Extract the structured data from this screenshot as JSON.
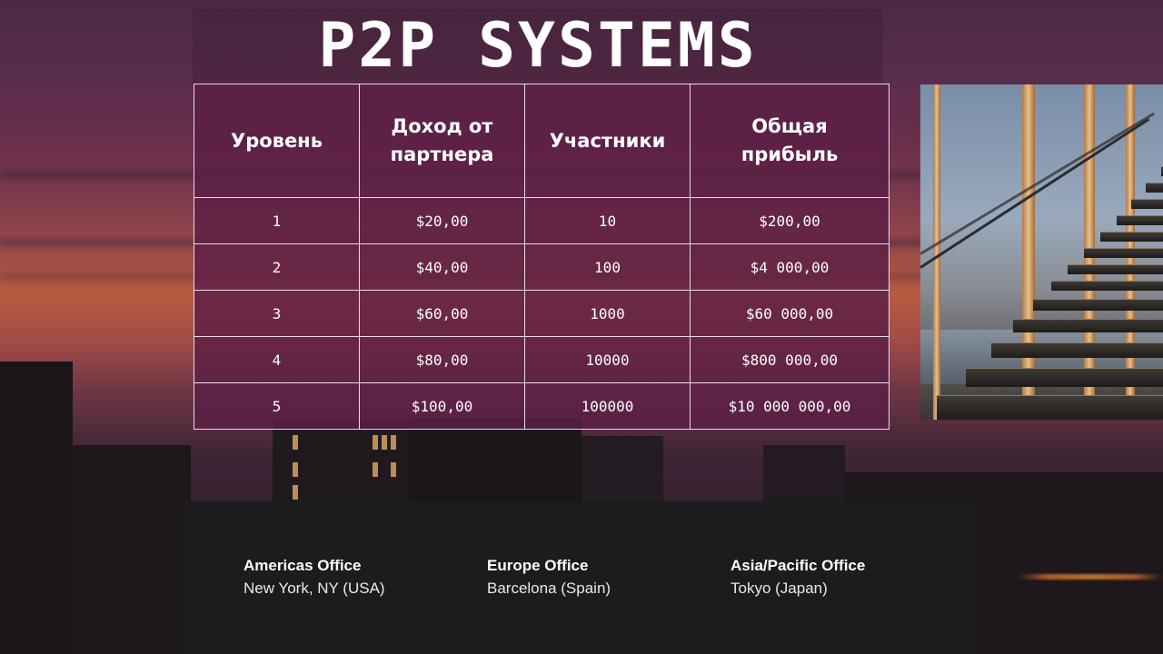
{
  "title": "P2P SYSTEMS",
  "table": {
    "headers": [
      "Уровень",
      "Доход от партнера",
      "Участники",
      "Общая прибыль"
    ],
    "rows": [
      [
        "1",
        "$20,00",
        "10",
        "$200,00"
      ],
      [
        "2",
        "$40,00",
        "100",
        "$4 000,00"
      ],
      [
        "3",
        "$60,00",
        "1000",
        "$60 000,00"
      ],
      [
        "4",
        "$80,00",
        "10000",
        "$800 000,00"
      ],
      [
        "5",
        "$100,00",
        "100000",
        "$10 000 000,00"
      ]
    ]
  },
  "offices": [
    {
      "name": "Americas Office",
      "location": "New York, NY (USA)"
    },
    {
      "name": "Europe Office",
      "location": "Barcelona (Spain)"
    },
    {
      "name": "Asia/Pacific Office",
      "location": "Tokyo (Japan)"
    }
  ]
}
